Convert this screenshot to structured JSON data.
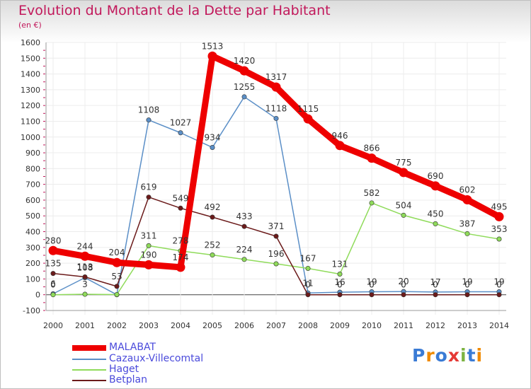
{
  "header": {
    "title": "Evolution du Montant de la Dette par Habitant",
    "unit": "(en €)"
  },
  "colors": {
    "title": "#c2185b",
    "axis_text": "#333333",
    "grid": "#ececec",
    "zero_line": "#444444"
  },
  "chart_data": {
    "type": "line",
    "title": "Evolution du Montant de la Dette par Habitant",
    "ylabel": "(en €)",
    "xlabel": "",
    "categories": [
      "2000",
      "2001",
      "2002",
      "2003",
      "2004",
      "2005",
      "2006",
      "2007",
      "2008",
      "2009",
      "2010",
      "2011",
      "2012",
      "2013",
      "2014"
    ],
    "ylim": [
      -100,
      1600
    ],
    "yticks": [
      -100,
      0,
      100,
      200,
      300,
      400,
      500,
      600,
      700,
      800,
      900,
      1000,
      1100,
      1200,
      1300,
      1400,
      1500,
      1600
    ],
    "grid": true,
    "legend_position": "bottom-left",
    "series": [
      {
        "name": "MALABAT",
        "color": "#ee0000",
        "values": [
          280,
          244,
          204,
          190,
          174,
          1513,
          1420,
          1317,
          1115,
          946,
          866,
          775,
          690,
          602,
          495
        ]
      },
      {
        "name": "Cazaux-Villecomtal",
        "color": "#5b8fc7",
        "values": [
          6,
          108,
          0,
          1108,
          1027,
          934,
          1255,
          1118,
          11,
          16,
          19,
          20,
          17,
          19,
          19
        ]
      },
      {
        "name": "Haget",
        "color": "#8fdb5a",
        "values": [
          0,
          3,
          1,
          311,
          278,
          252,
          224,
          196,
          167,
          131,
          582,
          504,
          450,
          387,
          353
        ]
      },
      {
        "name": "Betplan",
        "color": "#6b1a1a",
        "values": [
          135,
          113,
          53,
          619,
          549,
          492,
          433,
          371,
          0,
          0,
          0,
          0,
          0,
          0,
          0
        ]
      }
    ],
    "data_labels": [
      {
        "series": "MALABAT",
        "values": [
          "280",
          "244",
          "204",
          "190",
          "174",
          "1513",
          "1420",
          "1317",
          "1115",
          "946",
          "866",
          "775",
          "690",
          "602",
          "495"
        ]
      },
      {
        "series": "Cazaux-Villecomtal",
        "values": [
          "6",
          "108",
          "",
          "1108",
          "1027",
          "934",
          "1255",
          "1118",
          "11",
          "16",
          "19",
          "20",
          "17",
          "19",
          "19"
        ]
      },
      {
        "series": "Haget",
        "values": [
          "0",
          "3",
          "",
          "311",
          "278",
          "252",
          "224",
          "196",
          "167",
          "131",
          "582",
          "504",
          "450",
          "387",
          "353"
        ]
      },
      {
        "series": "Betplan",
        "values": [
          "135",
          "113",
          "53",
          "619",
          "549",
          "492",
          "433",
          "371",
          "0",
          "0",
          "0",
          "0",
          "0",
          "0",
          "0"
        ]
      }
    ]
  },
  "legend": {
    "items": [
      {
        "label": "MALABAT",
        "color": "#ee0000",
        "thick": true
      },
      {
        "label": "Cazaux-Villecomtal",
        "color": "#5b8fc7",
        "thick": false
      },
      {
        "label": "Haget",
        "color": "#8fdb5a",
        "thick": false
      },
      {
        "label": "Betplan",
        "color": "#6b1a1a",
        "thick": false
      }
    ],
    "text_color": "#4a4adb"
  },
  "logo": {
    "text": "Proxiti",
    "letter_colors": [
      "#3a7bd5",
      "#f08a00",
      "#3a7bd5",
      "#e53935",
      "#7cb342",
      "#3a7bd5",
      "#f08a00"
    ]
  }
}
